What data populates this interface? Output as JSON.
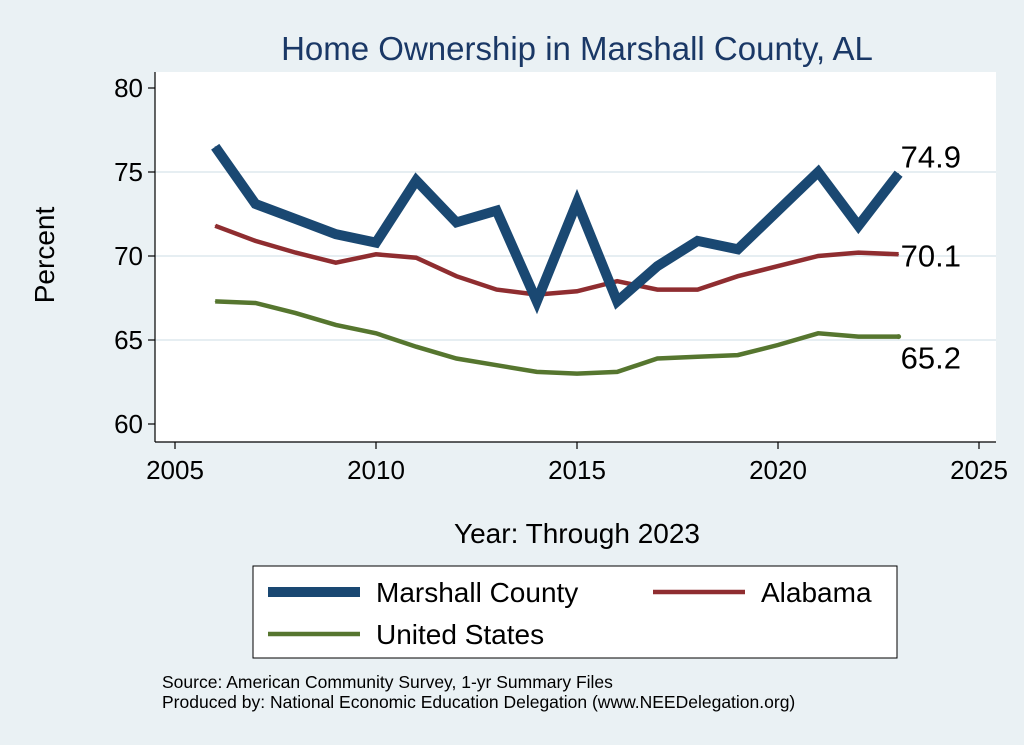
{
  "chart_data": {
    "type": "line",
    "title": "Home Ownership in Marshall County, AL",
    "xlabel": "Year: Through 2023",
    "ylabel": "Percent",
    "xlim": [
      2005,
      2025
    ],
    "ylim": [
      60,
      80
    ],
    "xticks": [
      2005,
      2010,
      2015,
      2020,
      2025
    ],
    "yticks": [
      60,
      65,
      70,
      75,
      80
    ],
    "x": [
      2006,
      2007,
      2008,
      2009,
      2010,
      2011,
      2012,
      2013,
      2014,
      2015,
      2016,
      2017,
      2018,
      2019,
      2020,
      2021,
      2022,
      2023
    ],
    "series": [
      {
        "name": "Marshall County",
        "color": "#1a4872",
        "end_label": "74.9",
        "values": [
          76.5,
          73.1,
          72.2,
          71.3,
          70.8,
          74.5,
          72.0,
          72.7,
          67.3,
          73.2,
          67.3,
          69.4,
          70.9,
          70.4,
          72.7,
          75.0,
          71.8,
          74.9
        ]
      },
      {
        "name": "Alabama",
        "color": "#8f2d30",
        "end_label": "70.1",
        "values": [
          71.8,
          70.9,
          70.2,
          69.6,
          70.1,
          69.9,
          68.8,
          68.0,
          67.7,
          67.9,
          68.5,
          68.0,
          68.0,
          68.8,
          69.4,
          70.0,
          70.2,
          70.1
        ]
      },
      {
        "name": "United States",
        "color": "#56762f",
        "end_label": "65.2",
        "values": [
          67.3,
          67.2,
          66.6,
          65.9,
          65.4,
          64.6,
          63.9,
          63.5,
          63.1,
          63.0,
          63.1,
          63.9,
          64.0,
          64.1,
          64.7,
          65.4,
          65.2,
          65.2
        ]
      }
    ],
    "legend_position": "bottom",
    "grid": true
  },
  "source_note": "Source: American Community Survey, 1-yr Summary Files",
  "produced_note": "Produced by: National Economic Education Delegation (www.NEEDelegation.org)"
}
